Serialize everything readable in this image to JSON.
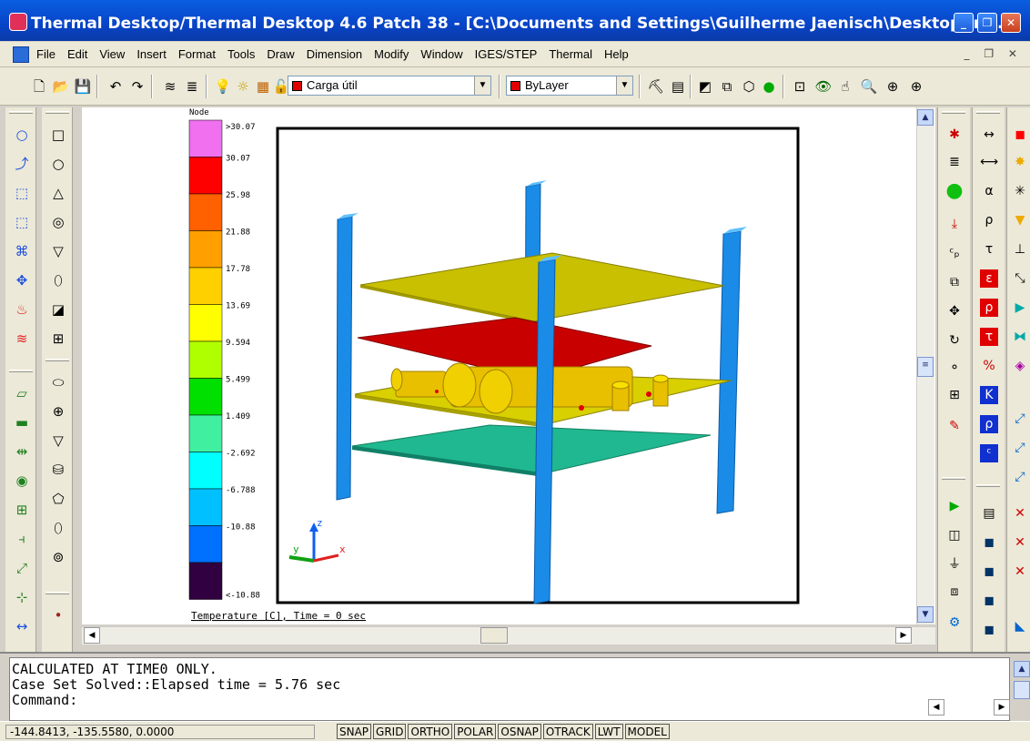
{
  "window": {
    "title": "Thermal Desktop/Thermal Desktop 4.6 Patch 38 - [C:\\Documents and Settings\\Guilherme Jaenisch\\Desktop\\fra...",
    "controls": [
      "_",
      "❐",
      "✕"
    ]
  },
  "menu": {
    "items": [
      "File",
      "Edit",
      "View",
      "Insert",
      "Format",
      "Tools",
      "Draw",
      "Dimension",
      "Modify",
      "Window",
      "IGES/STEP",
      "Thermal",
      "Help"
    ],
    "doc_controls": "_ ❐ ✕"
  },
  "toolbar": {
    "layer_combo": "Carga útil",
    "color_combo": "ByLayer",
    "layer_color": "#e00000"
  },
  "legend": {
    "header": "Node",
    "labels": [
      ">30.07",
      "30.07",
      "25.98",
      "21.88",
      "17.78",
      "13.69",
      "9.594",
      "5.499",
      "1.409",
      "-2.692",
      "-6.788",
      "-10.88",
      "<-10.88"
    ],
    "colors": [
      "#f070f0",
      "#ff0000",
      "#ff6000",
      "#ffa000",
      "#ffd000",
      "#ffff00",
      "#b0ff00",
      "#00e000",
      "#40f0a0",
      "#00ffff",
      "#00c0ff",
      "#0070ff",
      "#300040"
    ],
    "caption": "Temperature [C], Time = 0 sec"
  },
  "axes": {
    "x": "x",
    "y": "y",
    "z": "z"
  },
  "command": {
    "lines": [
      "CALCULATED AT TIME0 ONLY.",
      "Case Set Solved::Elapsed time = 5.76 sec",
      "Command:"
    ]
  },
  "status": {
    "coords": "-144.8413, -135.5580, 0.0000",
    "buttons": [
      "SNAP",
      "GRID",
      "ORTHO",
      "POLAR",
      "OSNAP",
      "OTRACK",
      "LWT",
      "MODEL"
    ]
  }
}
